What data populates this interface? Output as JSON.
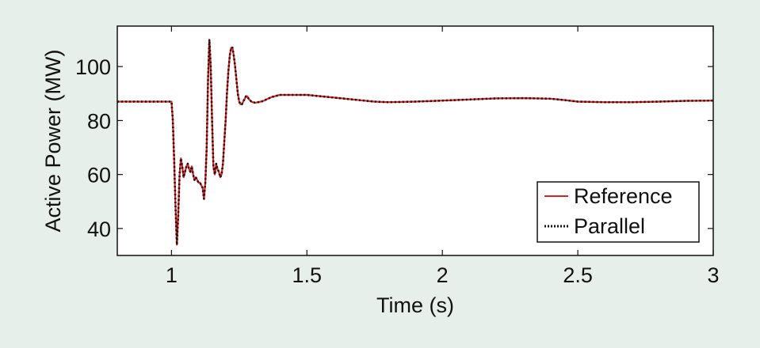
{
  "chart_data": {
    "type": "line",
    "title": "",
    "xlabel": "Time (s)",
    "ylabel": "Active Power (MW)",
    "xlim": [
      0.8,
      3.0
    ],
    "ylim": [
      30,
      115
    ],
    "xticks": [
      1,
      1.5,
      2,
      2.5,
      3
    ],
    "xtick_labels": [
      "1",
      "1.5",
      "2",
      "2.5",
      "3"
    ],
    "yticks": [
      40,
      60,
      80,
      100
    ],
    "ytick_labels": [
      "40",
      "60",
      "80",
      "100"
    ],
    "grid": false,
    "legend": {
      "placement": "bottom-right"
    },
    "series": [
      {
        "name": "Reference",
        "color": "#e02020",
        "style": "solid",
        "x": [
          0.8,
          1.0,
          1.005,
          1.01,
          1.015,
          1.02,
          1.025,
          1.03,
          1.035,
          1.04,
          1.045,
          1.05,
          1.055,
          1.06,
          1.065,
          1.07,
          1.075,
          1.08,
          1.085,
          1.09,
          1.095,
          1.1,
          1.105,
          1.11,
          1.115,
          1.12,
          1.125,
          1.13,
          1.135,
          1.14,
          1.145,
          1.15,
          1.155,
          1.16,
          1.165,
          1.17,
          1.175,
          1.18,
          1.185,
          1.19,
          1.195,
          1.2,
          1.205,
          1.21,
          1.215,
          1.22,
          1.225,
          1.23,
          1.235,
          1.24,
          1.245,
          1.25,
          1.255,
          1.26,
          1.265,
          1.27,
          1.275,
          1.28,
          1.285,
          1.29,
          1.295,
          1.3,
          1.31,
          1.32,
          1.33,
          1.34,
          1.35,
          1.37,
          1.4,
          1.5,
          1.6,
          1.7,
          1.75,
          1.8,
          1.9,
          2.0,
          2.1,
          2.2,
          2.3,
          2.4,
          2.45,
          2.5,
          2.6,
          2.7,
          2.8,
          2.9,
          3.0
        ],
        "y": [
          87,
          87,
          80,
          65,
          48,
          34,
          45,
          60,
          66,
          63,
          59,
          61,
          63,
          64,
          62,
          61,
          63,
          60,
          58,
          59,
          58,
          57,
          57,
          56,
          55,
          51,
          57,
          70,
          95,
          110,
          100,
          80,
          63,
          60,
          64,
          62,
          61,
          59,
          60,
          64,
          72,
          80,
          90,
          98,
          104,
          107,
          107,
          104,
          100,
          95,
          90,
          87,
          86,
          86,
          87,
          88,
          89,
          89,
          88,
          87.5,
          87,
          86.8,
          86.6,
          86.8,
          87,
          87.3,
          87.8,
          88.7,
          89.5,
          89.5,
          88.5,
          87.5,
          87,
          86.8,
          87,
          87.4,
          87.8,
          88.2,
          88.3,
          88.1,
          87.6,
          87,
          86.8,
          86.8,
          87,
          87.3,
          87.4
        ]
      },
      {
        "name": "Parallel",
        "color": "#111111",
        "style": "dotted",
        "same_as": "Reference"
      }
    ]
  }
}
